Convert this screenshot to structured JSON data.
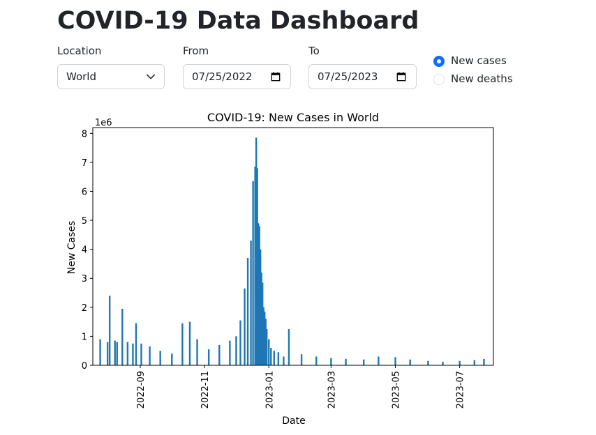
{
  "page": {
    "title": "COVID-19 Data Dashboard"
  },
  "controls": {
    "location": {
      "label": "Location",
      "value": "World"
    },
    "from": {
      "label": "From",
      "value": "07/25/2022"
    },
    "to": {
      "label": "To",
      "value": "07/25/2023"
    },
    "metric": {
      "options": [
        {
          "label": "New cases",
          "selected": true
        },
        {
          "label": "New deaths",
          "selected": false
        }
      ]
    }
  },
  "colors": {
    "accent": "#0d6efd",
    "bar": "#1f77b4"
  },
  "chart_data": {
    "type": "bar",
    "title": "COVID-19: New Cases in World",
    "xlabel": "Date",
    "ylabel": "New Cases",
    "y_multiplier_label": "1e6",
    "ylim": [
      0,
      8.2
    ],
    "yticks": [
      0,
      1,
      2,
      3,
      4,
      5,
      6,
      7,
      8
    ],
    "xlim": [
      "2022-07-18",
      "2023-08-02"
    ],
    "xticks": [
      "2022-09",
      "2022-11",
      "2023-01",
      "2023-03",
      "2023-05",
      "2023-07"
    ],
    "grid": false,
    "legend": "none",
    "series": [
      {
        "x": [
          "2022-07-25",
          "2022-08-01",
          "2022-08-03",
          "2022-08-08",
          "2022-08-10",
          "2022-08-15",
          "2022-08-20",
          "2022-08-25",
          "2022-08-28",
          "2022-09-02",
          "2022-09-10",
          "2022-09-20",
          "2022-10-01",
          "2022-10-11",
          "2022-10-18",
          "2022-10-25",
          "2022-11-05",
          "2022-11-15",
          "2022-11-25",
          "2022-12-01",
          "2022-12-05",
          "2022-12-09",
          "2022-12-12",
          "2022-12-15",
          "2022-12-17",
          "2022-12-19",
          "2022-12-20",
          "2022-12-21",
          "2022-12-22",
          "2022-12-23",
          "2022-12-24",
          "2022-12-25",
          "2022-12-26",
          "2022-12-27",
          "2022-12-28",
          "2022-12-29",
          "2022-12-30",
          "2023-01-01",
          "2023-01-03",
          "2023-01-06",
          "2023-01-10",
          "2023-01-15",
          "2023-01-20",
          "2023-02-01",
          "2023-02-15",
          "2023-03-01",
          "2023-03-15",
          "2023-04-01",
          "2023-04-15",
          "2023-05-01",
          "2023-05-15",
          "2023-06-01",
          "2023-06-15",
          "2023-07-01",
          "2023-07-15",
          "2023-07-24"
        ],
        "values": [
          0.9,
          0.8,
          2.4,
          0.85,
          0.8,
          1.95,
          0.8,
          0.75,
          1.45,
          0.75,
          0.65,
          0.5,
          0.4,
          1.45,
          1.5,
          0.9,
          0.55,
          0.7,
          0.85,
          1.0,
          1.55,
          2.65,
          3.7,
          4.3,
          6.35,
          6.85,
          7.85,
          6.8,
          4.9,
          4.8,
          4.0,
          3.2,
          2.85,
          2.0,
          1.85,
          1.6,
          1.25,
          0.9,
          0.6,
          0.5,
          0.45,
          0.3,
          1.25,
          0.38,
          0.3,
          0.25,
          0.22,
          0.2,
          0.3,
          0.28,
          0.2,
          0.15,
          0.12,
          0.15,
          0.18,
          0.22
        ]
      }
    ]
  }
}
